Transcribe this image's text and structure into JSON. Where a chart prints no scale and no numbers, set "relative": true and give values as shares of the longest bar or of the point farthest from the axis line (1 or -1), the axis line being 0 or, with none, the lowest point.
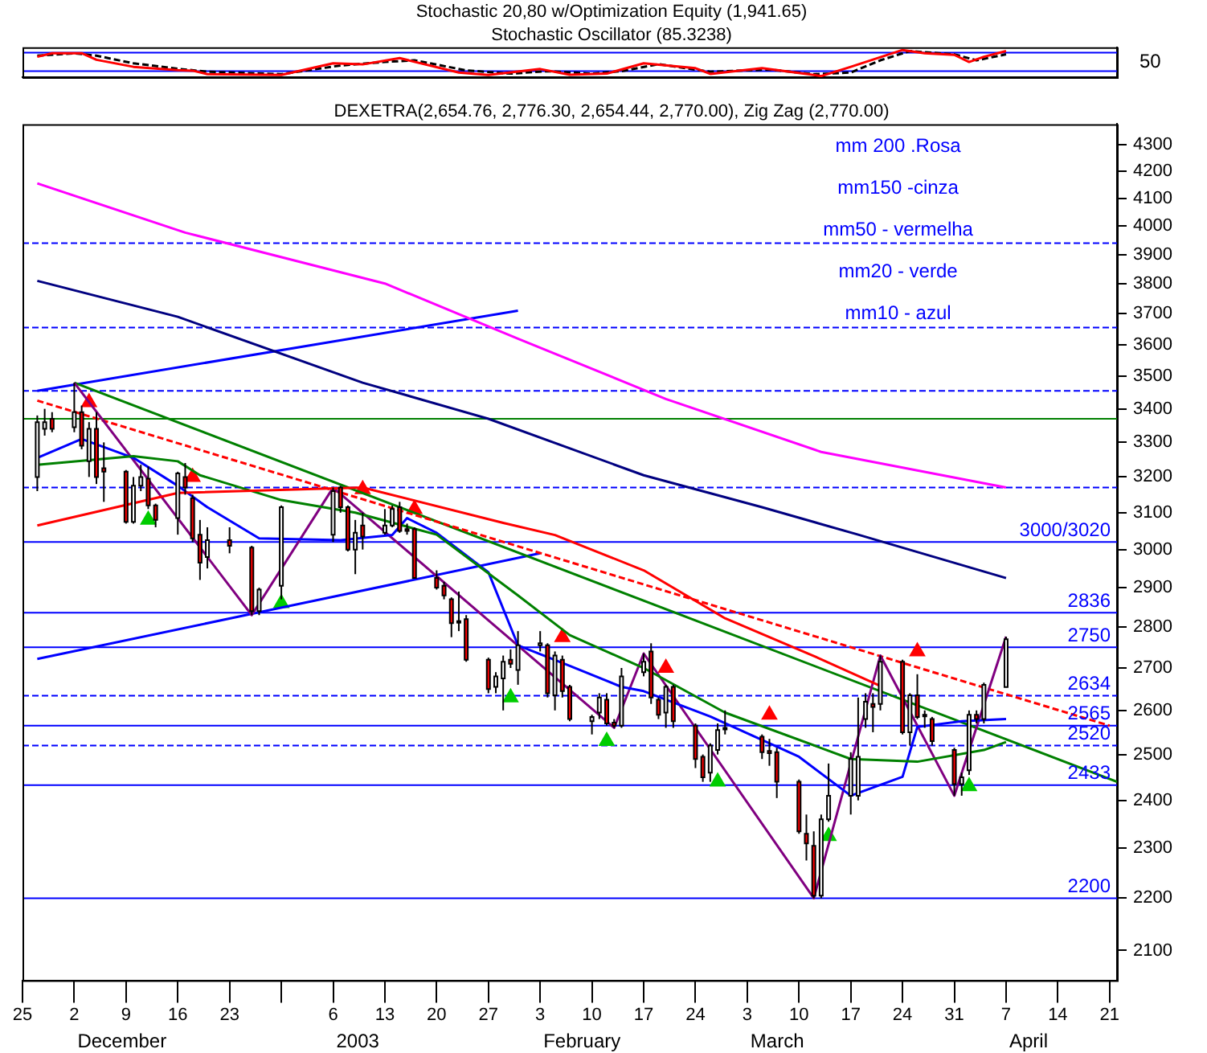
{
  "chart_data": [
    {
      "type": "line",
      "title": "Stochastic 20,80 w/Optimization Equity (1,941.65)",
      "subtitle": "Stochastic Oscillator (85.3238)",
      "xlim": [
        "2002-11-25",
        "2003-04-22"
      ],
      "relative": true,
      "marker": "none",
      "annotations": [
        "50"
      ],
      "ref_lines": [
        {
          "axis": "y",
          "value": 0.9,
          "color": "#0000ff"
        },
        {
          "axis": "y",
          "value": 0.22,
          "color": "#0000ff"
        }
      ],
      "series": [
        {
          "color": "#ff0000",
          "x": [
            "2002-11-27",
            "2002-11-29",
            "2002-12-03",
            "2002-12-05",
            "2002-12-10",
            "2002-12-16",
            "2002-12-18",
            "2002-12-20",
            "2002-12-30",
            "2003-01-06",
            "2003-01-10",
            "2003-01-15",
            "2003-01-23",
            "2003-01-27",
            "2003-02-03",
            "2003-02-07",
            "2003-02-12",
            "2003-02-17",
            "2003-02-24",
            "2003-02-26",
            "2003-03-05",
            "2003-03-11",
            "2003-03-13",
            "2003-03-17",
            "2003-03-24",
            "2003-03-27",
            "2003-03-31",
            "2003-04-02",
            "2003-04-04",
            "2003-04-07"
          ],
          "values": [
            0.75,
            0.88,
            0.88,
            0.64,
            0.38,
            0.26,
            0.24,
            0.11,
            0.08,
            0.51,
            0.47,
            0.7,
            0.17,
            0.08,
            0.3,
            0.09,
            0.13,
            0.51,
            0.33,
            0.12,
            0.33,
            0.12,
            0.04,
            0.38,
            1,
            0.88,
            0.82,
            0.56,
            0.75,
            0.96
          ]
        },
        {
          "color": "#000000",
          "line_style": "dashed",
          "x": [
            "2002-11-27",
            "2002-12-02",
            "2002-12-05",
            "2002-12-10",
            "2002-12-16",
            "2002-12-20",
            "2002-12-30",
            "2003-01-07",
            "2003-01-13",
            "2003-01-17",
            "2003-01-24",
            "2003-01-30",
            "2003-02-04",
            "2003-02-10",
            "2003-02-14",
            "2003-02-19",
            "2003-02-26",
            "2003-03-06",
            "2003-03-12",
            "2003-03-17",
            "2003-03-21",
            "2003-03-25",
            "2003-03-31",
            "2003-04-03",
            "2003-04-07"
          ],
          "values": [
            0.79,
            0.88,
            0.79,
            0.51,
            0.31,
            0.2,
            0.11,
            0.43,
            0.56,
            0.62,
            0.25,
            0.13,
            0.22,
            0.13,
            0.22,
            0.48,
            0.2,
            0.28,
            0.11,
            0.17,
            0.62,
            0.96,
            0.84,
            0.62,
            0.84
          ]
        }
      ]
    },
    {
      "type": "candlestick",
      "title": "DEXETRA(2,654.76, 2,776.30, 2,654.44, 2,770.00), Zig Zag (2,770.00)",
      "log": true,
      "marker": "none",
      "xlim": [
        "2002-11-25",
        "2003-04-22"
      ],
      "ylim": [
        2045,
        4380
      ],
      "yticks": [
        2100,
        2200,
        2300,
        2400,
        2500,
        2600,
        2700,
        2800,
        2900,
        3000,
        3100,
        3200,
        3300,
        3400,
        3500,
        3600,
        3700,
        3800,
        3900,
        4000,
        4100,
        4200,
        4300
      ],
      "xticks": [
        {
          "value": "2002-11-25",
          "label": "25"
        },
        {
          "value": "2002-12-02",
          "label": "2"
        },
        {
          "value": "2002-12-09",
          "label": "9"
        },
        {
          "value": "2002-12-16",
          "label": "16"
        },
        {
          "value": "2002-12-23",
          "label": "23"
        },
        {
          "value": "2002-12-30",
          "label": null
        },
        {
          "value": "2003-01-06",
          "label": "6"
        },
        {
          "value": "2003-01-13",
          "label": "13"
        },
        {
          "value": "2003-01-20",
          "label": "20"
        },
        {
          "value": "2003-01-27",
          "label": "27"
        },
        {
          "value": "2003-02-03",
          "label": "3"
        },
        {
          "value": "2003-02-10",
          "label": "10"
        },
        {
          "value": "2003-02-17",
          "label": "17"
        },
        {
          "value": "2003-02-24",
          "label": "24"
        },
        {
          "value": "2003-03-03",
          "label": "3"
        },
        {
          "value": "2003-03-10",
          "label": "10"
        },
        {
          "value": "2003-03-17",
          "label": "17"
        },
        {
          "value": "2003-03-24",
          "label": "24"
        },
        {
          "value": "2003-03-31",
          "label": "31"
        },
        {
          "value": "2003-04-07",
          "label": "7"
        },
        {
          "value": "2003-04-14",
          "label": "14"
        },
        {
          "value": "2003-04-21",
          "label": "21"
        }
      ],
      "x": [
        "2002-11-27",
        "2002-11-28",
        "2002-11-29",
        "2002-12-02",
        "2002-12-03",
        "2002-12-04",
        "2002-12-05",
        "2002-12-06",
        "2002-12-09",
        "2002-12-10",
        "2002-12-11",
        "2002-12-12",
        "2002-12-13",
        "2002-12-16",
        "2002-12-17",
        "2002-12-18",
        "2002-12-19",
        "2002-12-20",
        "2002-12-23",
        "2002-12-26",
        "2002-12-27",
        "2002-12-30",
        "2003-01-06",
        "2003-01-07",
        "2003-01-08",
        "2003-01-09",
        "2003-01-10",
        "2003-01-13",
        "2003-01-14",
        "2003-01-15",
        "2003-01-16",
        "2003-01-17",
        "2003-01-20",
        "2003-01-21",
        "2003-01-22",
        "2003-01-23",
        "2003-01-24",
        "2003-01-27",
        "2003-01-28",
        "2003-01-29",
        "2003-01-30",
        "2003-01-31",
        "2003-02-03",
        "2003-02-04",
        "2003-02-05",
        "2003-02-06",
        "2003-02-07",
        "2003-02-10",
        "2003-02-11",
        "2003-02-12",
        "2003-02-13",
        "2003-02-14",
        "2003-02-17",
        "2003-02-18",
        "2003-02-19",
        "2003-02-20",
        "2003-02-21",
        "2003-02-24",
        "2003-02-25",
        "2003-02-26",
        "2003-02-27",
        "2003-02-28",
        "2003-03-05",
        "2003-03-06",
        "2003-03-07",
        "2003-03-10",
        "2003-03-11",
        "2003-03-12",
        "2003-03-13",
        "2003-03-14",
        "2003-03-17",
        "2003-03-18",
        "2003-03-19",
        "2003-03-20",
        "2003-03-21",
        "2003-03-24",
        "2003-03-25",
        "2003-03-26",
        "2003-03-27",
        "2003-03-28",
        "2003-03-31",
        "2003-04-01",
        "2003-04-02",
        "2003-04-03",
        "2003-04-04",
        "2003-04-07"
      ],
      "ohlc": [
        [
          3200,
          3380,
          3160,
          3360
        ],
        [
          3340,
          3400,
          3320,
          3360
        ],
        [
          3370,
          3390,
          3330,
          3340
        ],
        [
          3345,
          3480,
          3330,
          3390
        ],
        [
          3390,
          3410,
          3280,
          3290
        ],
        [
          3245,
          3360,
          3200,
          3340
        ],
        [
          3340,
          3390,
          3180,
          3200
        ],
        [
          3225,
          3300,
          3130,
          3215
        ],
        [
          3215,
          3220,
          3070,
          3075
        ],
        [
          3075,
          3200,
          3070,
          3175
        ],
        [
          3175,
          3235,
          3160,
          3200
        ],
        [
          3195,
          3230,
          3110,
          3120
        ],
        [
          3120,
          3125,
          3060,
          3080
        ],
        [
          3085,
          3215,
          3040,
          3210
        ],
        [
          3200,
          3240,
          3150,
          3170
        ],
        [
          3140,
          3150,
          3020,
          3030
        ],
        [
          3040,
          3080,
          2920,
          2965
        ],
        [
          2980,
          3060,
          2950,
          3025
        ],
        [
          3025,
          3060,
          2990,
          3010
        ],
        [
          3005,
          3010,
          2830,
          2840
        ],
        [
          2840,
          2900,
          2830,
          2895
        ],
        [
          2905,
          3120,
          2870,
          3115
        ],
        [
          3040,
          3170,
          3020,
          3160
        ],
        [
          3170,
          3175,
          3100,
          3115
        ],
        [
          3115,
          3120,
          2995,
          3000
        ],
        [
          3000,
          3080,
          2935,
          3045
        ],
        [
          3065,
          3100,
          3000,
          3035
        ],
        [
          3045,
          3110,
          3040,
          3065
        ],
        [
          3065,
          3120,
          3060,
          3110
        ],
        [
          3115,
          3130,
          3045,
          3050
        ],
        [
          3055,
          3070,
          3040,
          3050
        ],
        [
          3055,
          3060,
          2925,
          2925
        ],
        [
          2925,
          2945,
          2895,
          2900
        ],
        [
          2905,
          2915,
          2870,
          2880
        ],
        [
          2870,
          2875,
          2775,
          2810
        ],
        [
          2815,
          2890,
          2790,
          2815
        ],
        [
          2820,
          2830,
          2715,
          2720
        ],
        [
          2720,
          2725,
          2640,
          2650
        ],
        [
          2655,
          2690,
          2640,
          2680
        ],
        [
          2675,
          2730,
          2600,
          2715
        ],
        [
          2720,
          2745,
          2700,
          2710
        ],
        [
          2695,
          2790,
          2660,
          2755
        ],
        [
          2755,
          2790,
          2740,
          2760
        ],
        [
          2755,
          2760,
          2630,
          2640
        ],
        [
          2635,
          2740,
          2600,
          2730
        ],
        [
          2720,
          2730,
          2630,
          2645
        ],
        [
          2655,
          2660,
          2575,
          2580
        ],
        [
          2575,
          2590,
          2545,
          2585
        ],
        [
          2595,
          2640,
          2580,
          2630
        ],
        [
          2625,
          2640,
          2565,
          2570
        ],
        [
          2572,
          2580,
          2560,
          2565
        ],
        [
          2565,
          2700,
          2560,
          2680
        ],
        [
          2690,
          2735,
          2680,
          2715
        ],
        [
          2740,
          2760,
          2615,
          2630
        ],
        [
          2625,
          2630,
          2580,
          2590
        ],
        [
          2595,
          2660,
          2560,
          2655
        ],
        [
          2655,
          2660,
          2560,
          2575
        ],
        [
          2565,
          2570,
          2470,
          2490
        ],
        [
          2495,
          2500,
          2440,
          2450
        ],
        [
          2460,
          2525,
          2440,
          2520
        ],
        [
          2510,
          2570,
          2500,
          2555
        ],
        [
          2560,
          2600,
          2545,
          2558
        ],
        [
          2540,
          2545,
          2490,
          2505
        ],
        [
          2508,
          2535,
          2475,
          2503
        ],
        [
          2505,
          2515,
          2405,
          2440
        ],
        [
          2440,
          2445,
          2330,
          2335
        ],
        [
          2330,
          2370,
          2275,
          2310
        ],
        [
          2305,
          2335,
          2200,
          2205
        ],
        [
          2205,
          2370,
          2200,
          2360
        ],
        [
          2360,
          2480,
          2355,
          2410
        ],
        [
          2410,
          2505,
          2370,
          2490
        ],
        [
          2410,
          2630,
          2400,
          2495
        ],
        [
          2580,
          2640,
          2560,
          2620
        ],
        [
          2615,
          2640,
          2550,
          2608
        ],
        [
          2615,
          2730,
          2600,
          2715
        ],
        [
          2715,
          2720,
          2545,
          2550
        ],
        [
          2550,
          2640,
          2520,
          2635
        ],
        [
          2635,
          2685,
          2580,
          2585
        ],
        [
          2590,
          2600,
          2560,
          2588
        ],
        [
          2580,
          2585,
          2520,
          2530
        ],
        [
          2510,
          2515,
          2410,
          2435
        ],
        [
          2435,
          2460,
          2410,
          2450
        ],
        [
          2465,
          2600,
          2455,
          2590
        ],
        [
          2590,
          2600,
          2570,
          2580
        ],
        [
          2580,
          2665,
          2570,
          2660
        ],
        [
          2654.76,
          2776.3,
          2654.44,
          2770
        ]
      ],
      "colors": [
        "#ffffff",
        "#ffffff",
        "#ff0000",
        "#ffffff",
        "#ff0000",
        "#ffffff",
        "#ff0000",
        "#ff0000",
        "#ff0000",
        "#ffffff",
        "#ffffff",
        "#ff0000",
        "#ff0000",
        "#ffffff",
        "#ff0000",
        "#ff0000",
        "#ff0000",
        "#ffffff",
        "#ff0000",
        "#ff0000",
        "#ffffff",
        "#ffffff",
        "#ffffff",
        "#ff0000",
        "#ff0000",
        "#ffffff",
        "#ff0000",
        "#ffffff",
        "#ffffff",
        "#ff0000",
        "#ff0000",
        "#ff0000",
        "#ff0000",
        "#ff0000",
        "#ff0000",
        "#ffffff",
        "#ff0000",
        "#ff0000",
        "#ffffff",
        "#ffffff",
        "#ff0000",
        "#ffffff",
        "#ffffff",
        "#ff0000",
        "#ffffff",
        "#ff0000",
        "#ff0000",
        "#ffffff",
        "#ffffff",
        "#ff0000",
        "#ff0000",
        "#ffffff",
        "#ffffff",
        "#ff0000",
        "#ff0000",
        "#ffffff",
        "#ff0000",
        "#ff0000",
        "#ff0000",
        "#ffffff",
        "#ffffff",
        "#ffffff",
        "#ff0000",
        "#ff0000",
        "#ff0000",
        "#ff0000",
        "#ff0000",
        "#ff0000",
        "#ffffff",
        "#ffffff",
        "#ffffff",
        "#ffffff",
        "#ffffff",
        "#ff0000",
        "#ffffff",
        "#ff0000",
        "#ffffff",
        "#ff0000",
        "#ffffff",
        "#ff0000",
        "#ff0000",
        "#ffffff",
        "#ffffff",
        "#ff0000",
        "#ffffff",
        "#ffffff"
      ],
      "ref_lines": [
        {
          "axis": "y",
          "value": 3940,
          "color": "#0000ff",
          "line_style": "dashed"
        },
        {
          "axis": "y",
          "value": 3655,
          "color": "#0000ff",
          "line_style": "dashed"
        },
        {
          "axis": "y",
          "value": 3455,
          "color": "#0000ff",
          "line_style": "dashed"
        },
        {
          "axis": "y",
          "value": 3370,
          "color": "#008000"
        },
        {
          "axis": "y",
          "value": 3170,
          "color": "#0000ff",
          "line_style": "dashed"
        },
        {
          "axis": "y",
          "value": 3020,
          "label": "3000/3020",
          "color": "#0000ff"
        },
        {
          "axis": "y",
          "value": 2836,
          "label": "2836",
          "color": "#0000ff"
        },
        {
          "axis": "y",
          "value": 2750,
          "label": "2750",
          "color": "#0000ff"
        },
        {
          "axis": "y",
          "value": 2634,
          "label": "2634",
          "color": "#0000ff",
          "line_style": "dashed"
        },
        {
          "axis": "y",
          "value": 2565,
          "label": "2565",
          "color": "#0000ff"
        },
        {
          "axis": "y",
          "value": 2520,
          "label": "2520",
          "color": "#0000ff",
          "line_style": "dashed"
        },
        {
          "axis": "y",
          "value": 2433,
          "label": "2433",
          "color": "#0000ff"
        },
        {
          "axis": "y",
          "value": 2200,
          "label": "2200",
          "color": "#0000ff"
        }
      ],
      "annotations": [
        "mm 200 .Rosa",
        "mm150 -cinza",
        "mm50 - vermelha",
        "mm20 - verde",
        "mm10 - azul",
        "December",
        "2003",
        "February",
        "March",
        "April"
      ],
      "series": [
        {
          "type": "line",
          "color": "#ff00ff",
          "x": [
            "2002-11-27",
            "2002-12-17",
            "2003-01-13",
            "2003-01-31",
            "2003-02-20",
            "2003-03-13",
            "2003-04-07"
          ],
          "values": [
            4155,
            3977,
            3801,
            3619,
            3430,
            3272,
            3170
          ]
        },
        {
          "type": "line",
          "color": "#000080",
          "x": [
            "2002-11-27",
            "2002-12-16",
            "2003-01-10",
            "2003-01-27",
            "2003-02-17",
            "2003-03-05",
            "2003-03-18",
            "2003-04-07"
          ],
          "values": [
            3810,
            3690,
            3480,
            3370,
            3205,
            3115,
            3040,
            2925
          ]
        },
        {
          "type": "line",
          "color": "#ff0000",
          "x": [
            "2002-11-27",
            "2002-12-16",
            "2003-01-10",
            "2003-01-29",
            "2003-02-05",
            "2003-02-17",
            "2003-02-28",
            "2003-03-12",
            "2003-03-21"
          ],
          "values": [
            3065,
            3155,
            3170,
            3072,
            3039,
            2945,
            2822,
            2729,
            2657
          ]
        },
        {
          "type": "line",
          "color": "#008000",
          "x": [
            "2002-11-27",
            "2002-12-10",
            "2002-12-16",
            "2002-12-19",
            "2002-12-30",
            "2003-01-09",
            "2003-01-20",
            "2003-01-31",
            "2003-02-07",
            "2003-02-17",
            "2003-02-28",
            "2003-03-17",
            "2003-03-26",
            "2003-04-04",
            "2003-04-07"
          ],
          "values": [
            3235,
            3260,
            3245,
            3205,
            3135,
            3100,
            3040,
            2880,
            2780,
            2700,
            2595,
            2490,
            2484,
            2510,
            2528
          ]
        },
        {
          "type": "line",
          "color": "#0000ff",
          "x": [
            "2002-11-27",
            "2002-12-03",
            "2002-12-10",
            "2002-12-16",
            "2002-12-20",
            "2002-12-27",
            "2003-01-07",
            "2003-01-14",
            "2003-01-16",
            "2003-01-20",
            "2003-01-27",
            "2003-01-31",
            "2003-02-07",
            "2003-02-14",
            "2003-02-17",
            "2003-02-26",
            "2003-03-10",
            "2003-03-17",
            "2003-03-24",
            "2003-03-26",
            "2003-04-01",
            "2003-04-07"
          ],
          "values": [
            3255,
            3310,
            3255,
            3175,
            3115,
            3030,
            3025,
            3039,
            3085,
            3045,
            2940,
            2755,
            2705,
            2655,
            2645,
            2586,
            2495,
            2410,
            2451,
            2562,
            2575,
            2580
          ]
        },
        {
          "type": "line",
          "color": "#800080",
          "x": [
            "2002-12-02",
            "2002-12-26",
            "2003-01-06",
            "2003-02-13",
            "2003-02-17",
            "2003-03-12",
            "2003-03-21",
            "2003-03-31",
            "2003-04-07"
          ],
          "values": [
            3480,
            2830,
            3170,
            2560,
            2735,
            2200,
            2730,
            2410,
            2776.3
          ]
        },
        {
          "type": "line",
          "color": "#ff0000",
          "line_style": "dashed",
          "x": [
            "2002-11-27",
            "2003-04-21"
          ],
          "values": [
            3425,
            2565
          ]
        },
        {
          "type": "line",
          "color": "#008000",
          "x": [
            "2002-12-02",
            "2003-04-22"
          ],
          "values": [
            3480,
            2440
          ]
        },
        {
          "type": "line",
          "color": "#0000ff",
          "x": [
            "2002-11-27",
            "2003-01-31"
          ],
          "values": [
            3455,
            3710
          ]
        },
        {
          "type": "line",
          "color": "#0000ff",
          "x": [
            "2002-11-27",
            "2003-02-03"
          ],
          "values": [
            2722,
            2990
          ]
        },
        {
          "type": "scatter",
          "color": "#ff0000",
          "marker": "triangle",
          "x": [
            "2002-12-04",
            "2002-12-18",
            "2003-01-10",
            "2003-01-17",
            "2003-02-06",
            "2003-02-20",
            "2003-03-06",
            "2003-03-26"
          ],
          "values": [
            3420,
            3200,
            3165,
            3110,
            2775,
            2700,
            2590,
            2740
          ]
        },
        {
          "type": "scatter",
          "color": "#00cc00",
          "marker": "triangle",
          "x": [
            "2002-12-12",
            "2002-12-30",
            "2003-01-30",
            "2003-02-12",
            "2003-02-27",
            "2003-03-14",
            "2003-04-02"
          ],
          "values": [
            3080,
            2860,
            2630,
            2530,
            2440,
            2325,
            2430
          ]
        }
      ]
    }
  ]
}
